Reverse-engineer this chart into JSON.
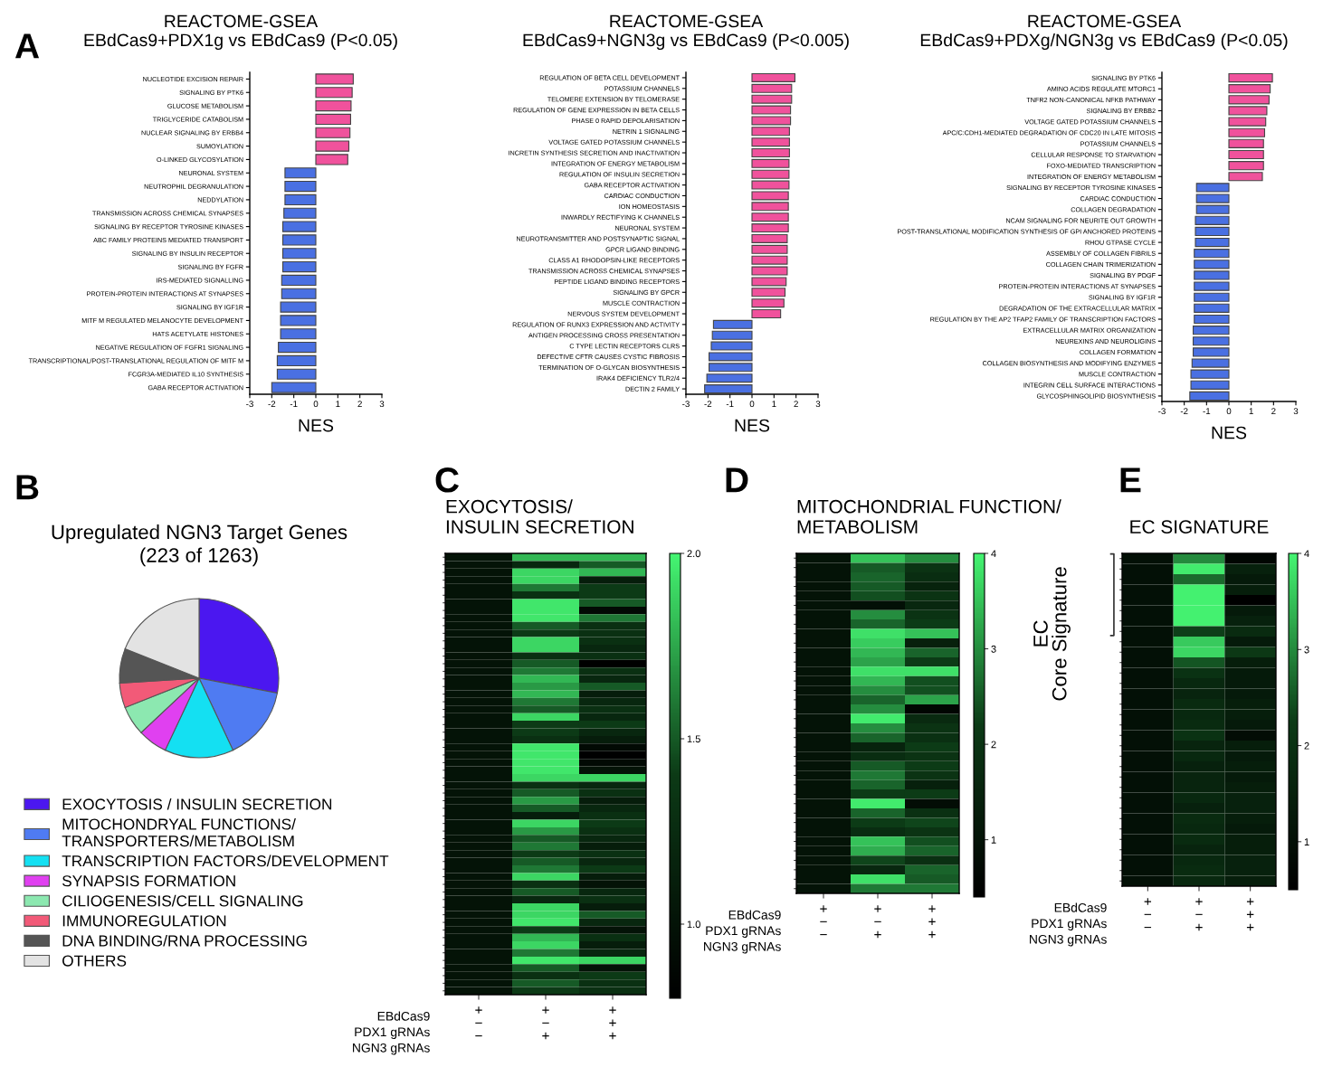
{
  "chart_data": [
    {
      "type": "bar",
      "orientation": "horizontal",
      "title": "REACTOME-GSEA\nEBdCas9+PDX1g vs EBdCas9 (P<0.05)",
      "xlabel": "NES",
      "annotations": [
        "A"
      ],
      "categories": [
        "NUCLEOTIDE EXCISION REPAIR",
        "SIGNALING BY PTK6",
        "GLUCOSE METABOLISM",
        "TRIGLYCERIDE CATABOLISM",
        "NUCLEAR SIGNALING BY ERBB4",
        "SUMOYLATION",
        "O-LINKED GLYCOSYLATION",
        "NEURONAL SYSTEM",
        "NEUTROPHIL DEGRANULATION",
        "NEDDYLATION",
        "TRANSMISSION ACROSS CHEMICAL SYNAPSES",
        "SIGNALING BY RECEPTOR TYROSINE KINASES",
        "ABC FAMILY PROTEINS MEDIATED TRANSPORT",
        "SIGNALING BY INSULIN RECEPTOR",
        "SIGNALING BY FGFR",
        "IRS-MEDIATED SIGNALLING",
        "PROTEIN-PROTEIN INTERACTIONS AT SYNAPSES",
        "SIGNALING BY IGF1R",
        "MITF M REGULATED MELANOCYTE DEVELOPMENT",
        "HATS ACETYLATE HISTONES",
        "NEGATIVE REGULATION OF FGFR1 SIGNALING",
        "TRANSCRIPTIONAL/POST-TRANSLATIONAL REGULATION OF MITF M",
        "FCGR3A-MEDIATED IL10 SYNTHESIS",
        "GABA RECEPTOR ACTIVATION"
      ],
      "values": [
        1.7,
        1.65,
        1.6,
        1.58,
        1.55,
        1.5,
        1.45,
        -1.4,
        -1.4,
        -1.4,
        -1.45,
        -1.5,
        -1.5,
        -1.5,
        -1.5,
        -1.55,
        -1.55,
        -1.6,
        -1.6,
        -1.6,
        -1.7,
        -1.75,
        -1.75,
        -2.0
      ],
      "colors": [
        "#f0529c",
        "#f0529c",
        "#f0529c",
        "#f0529c",
        "#f0529c",
        "#f0529c",
        "#f0529c",
        "#4a70e2",
        "#4a70e2",
        "#4a70e2",
        "#4a70e2",
        "#4a70e2",
        "#4a70e2",
        "#4a70e2",
        "#4a70e2",
        "#4a70e2",
        "#4a70e2",
        "#4a70e2",
        "#4a70e2",
        "#4a70e2",
        "#4a70e2",
        "#4a70e2",
        "#4a70e2",
        "#4a70e2"
      ],
      "xlim": [
        -3,
        3
      ],
      "xticks": [
        -3,
        -2,
        -1,
        0,
        1,
        2,
        3
      ]
    },
    {
      "type": "bar",
      "orientation": "horizontal",
      "title": "REACTOME-GSEA\nEBdCas9+NGN3g vs EBdCas9 (P<0.005)",
      "xlabel": "NES",
      "categories": [
        "REGULATION OF BETA CELL DEVELOPMENT",
        "POTASSIUM CHANNELS",
        "TELOMERE EXTENSION BY TELOMERASE",
        "REGULATION OF GENE EXPRESSION IN BETA CELLS",
        "PHASE 0 RAPID DEPOLARISATION",
        "NETRIN 1 SIGNALING",
        "VOLTAGE GATED POTASSIUM CHANNELS",
        "INCRETIN SYNTHESIS SECRETION AND INACTIVATION",
        "INTEGRATION OF ENERGY METABOLISM",
        "REGULATION OF INSULIN SECRETION",
        "GABA RECEPTOR ACTIVATION",
        "CARDIAC CONDUCTION",
        "ION HOMEOSTASIS",
        "INWARDLY RECTIFYING K CHANNELS",
        "NEURONAL SYSTEM",
        "NEUROTRANSMITTER AND POSTSYNAPTIC SIGNAL",
        "GPCR LIGAND BINDING",
        "CLASS A1 RHODOPSIN-LIKE RECEPTORS",
        "TRANSMISSION ACROSS CHEMICAL SYNAPSES",
        "PEPTIDE LIGAND BINDING RECEPTORS",
        "SIGNALING BY GPCR",
        "MUSCLE CONTRACTION",
        "NERVOUS SYSTEM DEVELOPMENT",
        "REGULATION OF RUNX3 EXPRESSION AND ACTIVITY",
        "ANTIGEN PROCESSING CROSS PRESENTATION",
        "C TYPE LECTIN RECEPTORS CLRS",
        "DEFECTIVE CFTR CAUSES CYSTIC FIBROSIS",
        "TERMINATION OF O-GLYCAN BIOSYNTHESIS",
        "IRAK4 DEFICIENCY TLR2/4",
        "DECTIN 2 FAMILY"
      ],
      "values": [
        1.95,
        1.8,
        1.8,
        1.75,
        1.75,
        1.7,
        1.7,
        1.7,
        1.68,
        1.68,
        1.68,
        1.65,
        1.65,
        1.65,
        1.65,
        1.6,
        1.6,
        1.6,
        1.6,
        1.55,
        1.5,
        1.45,
        1.3,
        -1.75,
        -1.8,
        -1.85,
        -1.95,
        -1.95,
        -2.05,
        -2.15
      ],
      "colors": [
        "#f0529c",
        "#f0529c",
        "#f0529c",
        "#f0529c",
        "#f0529c",
        "#f0529c",
        "#f0529c",
        "#f0529c",
        "#f0529c",
        "#f0529c",
        "#f0529c",
        "#f0529c",
        "#f0529c",
        "#f0529c",
        "#f0529c",
        "#f0529c",
        "#f0529c",
        "#f0529c",
        "#f0529c",
        "#f0529c",
        "#f0529c",
        "#f0529c",
        "#f0529c",
        "#4a70e2",
        "#4a70e2",
        "#4a70e2",
        "#4a70e2",
        "#4a70e2",
        "#4a70e2",
        "#4a70e2"
      ],
      "xlim": [
        -3,
        3
      ],
      "xticks": [
        -3,
        -2,
        -1,
        0,
        1,
        2,
        3
      ]
    },
    {
      "type": "bar",
      "orientation": "horizontal",
      "title": "REACTOME-GSEA\nEBdCas9+PDXg/NGN3g vs EBdCas9 (P<0.05)",
      "xlabel": "NES",
      "categories": [
        "SIGNALING BY PTK6",
        "AMINO ACIDS REGULATE MTORC1",
        "TNFR2 NON-CANONICAL NFKB PATHWAY",
        "SIGNALING BY ERBB2",
        "VOLTAGE GATED POTASSIUM CHANNELS",
        "APC/C:CDH1-MEDIATED DEGRADATION OF CDC20 IN LATE MITOSIS",
        "POTASSIUM CHANNELS",
        "CELLULAR RESPONSE TO STARVATION",
        "FOXO-MEDIATED TRANSCRIPTION",
        "INTEGRATION OF ENERGY METABOLISM",
        "SIGNALING BY RECEPTOR TYROSINE KINASES",
        "CARDIAC CONDUCTION",
        "COLLAGEN DEGRADATION",
        "NCAM SIGNALING FOR NEURITE OUT GROWTH",
        "POST-TRANSLATIONAL MODIFICATION SYNTHESIS OF GPI ANCHORED PROTEINS",
        "RHOU GTPASE CYCLE",
        "ASSEMBLY OF COLLAGEN FIBRILS",
        "COLLAGEN CHAIN TRIMERIZATION",
        "SIGNALING BY PDGF",
        "PROTEIN-PROTEIN INTERACTIONS AT SYNAPSES",
        "SIGNALING BY IGF1R",
        "DEGRADATION OF THE EXTRACELLULAR MATRIX",
        "REGULATION BY THE AP2 TFAP2 FAMILY OF TRANSCRIPTION FACTORS",
        "EXTRACELLULAR MATRIX ORGANIZATION",
        "NEUREXINS AND NEUROLIGINS",
        "COLLAGEN FORMATION",
        "COLLAGEN BIOSYNTHESIS AND MODIFYING ENZYMES",
        "MUSCLE CONTRACTION",
        "INTEGRIN CELL SURFACE INTERACTIONS",
        "GLYCOSPHINGOLIPID BIOSYNTHESIS"
      ],
      "values": [
        1.95,
        1.85,
        1.8,
        1.7,
        1.65,
        1.6,
        1.55,
        1.55,
        1.55,
        1.5,
        -1.45,
        -1.45,
        -1.45,
        -1.5,
        -1.5,
        -1.5,
        -1.55,
        -1.55,
        -1.55,
        -1.55,
        -1.55,
        -1.55,
        -1.55,
        -1.6,
        -1.6,
        -1.6,
        -1.65,
        -1.7,
        -1.7,
        -1.75
      ],
      "colors": [
        "#f0529c",
        "#f0529c",
        "#f0529c",
        "#f0529c",
        "#f0529c",
        "#f0529c",
        "#f0529c",
        "#f0529c",
        "#f0529c",
        "#f0529c",
        "#4a70e2",
        "#4a70e2",
        "#4a70e2",
        "#4a70e2",
        "#4a70e2",
        "#4a70e2",
        "#4a70e2",
        "#4a70e2",
        "#4a70e2",
        "#4a70e2",
        "#4a70e2",
        "#4a70e2",
        "#4a70e2",
        "#4a70e2",
        "#4a70e2",
        "#4a70e2",
        "#4a70e2",
        "#4a70e2",
        "#4a70e2",
        "#4a70e2"
      ],
      "xlim": [
        -3,
        3
      ],
      "xticks": [
        -3,
        -2,
        -1,
        0,
        1,
        2,
        3
      ]
    },
    {
      "type": "pie",
      "title": "Upregulated NGN3 Target Genes\n(223 of 1263)",
      "annotations": [
        "B"
      ],
      "legend": "bottom",
      "categories": [
        "EXOCYTOSIS / INSULIN SECRETION",
        "MITOCHONDRYAL FUNCTIONS/\nTRANSPORTERS/METABOLISM",
        "TRANSCRIPTION FACTORS/DEVELOPMENT",
        "SYNAPSIS FORMATION",
        "CILIOGENESIS/CELL SIGNALING",
        "IMMUNOREGULATION",
        "DNA BINDING/RNA PROCESSING",
        "OTHERS"
      ],
      "values": [
        28,
        15,
        14,
        6,
        6,
        5,
        7,
        19
      ],
      "colors": [
        "#4b17f0",
        "#4f7bf2",
        "#14e0f2",
        "#e040f0",
        "#8ce8b0",
        "#f25a78",
        "#555555",
        "#e3e3e3"
      ]
    },
    {
      "type": "heatmap",
      "title": "EXOCYTOSIS/\nINSULIN SECRETION",
      "annotations": [
        "C",
        "EBdCas9",
        "PDX1 gRNAs",
        "NGN3 gRNAs"
      ],
      "categories": [
        "+\n−\n−",
        "+\n−\n+",
        "+\n+\n+"
      ],
      "y_categories": [
        null,
        null,
        null,
        null,
        null,
        null,
        null,
        null,
        null,
        null,
        null,
        null,
        null,
        null,
        null,
        null,
        null,
        null,
        null,
        null,
        null,
        null,
        null,
        null,
        null,
        null,
        null,
        null,
        null,
        null,
        null,
        null,
        null,
        null,
        null,
        null,
        null,
        null,
        null,
        null,
        null,
        null,
        null,
        null,
        null,
        null,
        null,
        null,
        null,
        null,
        null,
        null,
        null,
        null,
        null,
        null,
        null,
        null
      ],
      "cells": [
        [
          1.0,
          1.8,
          1.8
        ],
        [
          1.0,
          1.2,
          1.5
        ],
        [
          1.0,
          1.9,
          1.8
        ],
        [
          1.0,
          1.9,
          1.1
        ],
        [
          1.0,
          1.6,
          1.4
        ],
        [
          1.0,
          1.3,
          1.4
        ],
        [
          1.0,
          1.95,
          1.5
        ],
        [
          1.0,
          1.95,
          0.9
        ],
        [
          1.0,
          1.95,
          1.6
        ],
        [
          1.0,
          1.5,
          1.3
        ],
        [
          1.0,
          1.4,
          1.3
        ],
        [
          1.0,
          1.9,
          1.3
        ],
        [
          1.0,
          1.9,
          1.2
        ],
        [
          1.0,
          1.3,
          1.3
        ],
        [
          1.0,
          1.5,
          0.8
        ],
        [
          1.0,
          1.6,
          1.3
        ],
        [
          1.0,
          1.8,
          1.2
        ],
        [
          1.0,
          1.7,
          1.5
        ],
        [
          1.0,
          1.8,
          1.1
        ],
        [
          1.0,
          1.6,
          1.2
        ],
        [
          1.0,
          1.5,
          1.3
        ],
        [
          1.0,
          1.9,
          1.2
        ],
        [
          1.0,
          1.4,
          1.4
        ],
        [
          1.0,
          1.4,
          1.2
        ],
        [
          1.0,
          1.3,
          1.1
        ],
        [
          1.0,
          1.95,
          0.9
        ],
        [
          1.0,
          1.95,
          0.8
        ],
        [
          1.0,
          1.95,
          0.9
        ],
        [
          1.0,
          1.95,
          1.0
        ],
        [
          1.0,
          1.9,
          1.9
        ],
        [
          1.0,
          1.3,
          1.2
        ],
        [
          1.0,
          1.5,
          1.3
        ],
        [
          1.0,
          1.7,
          1.1
        ],
        [
          1.0,
          1.5,
          1.2
        ],
        [
          1.0,
          1.1,
          1.3
        ],
        [
          1.0,
          1.9,
          1.4
        ],
        [
          1.0,
          1.7,
          1.3
        ],
        [
          1.0,
          1.5,
          1.2
        ],
        [
          1.0,
          1.6,
          1.1
        ],
        [
          1.0,
          1.4,
          1.3
        ],
        [
          1.0,
          1.5,
          1.2
        ],
        [
          1.0,
          1.6,
          1.4
        ],
        [
          1.0,
          1.9,
          1.1
        ],
        [
          1.0,
          1.3,
          1.0
        ],
        [
          1.0,
          1.5,
          1.2
        ],
        [
          1.0,
          1.2,
          1.3
        ],
        [
          1.0,
          1.9,
          1.1
        ],
        [
          1.0,
          1.9,
          1.5
        ],
        [
          1.0,
          1.95,
          1.2
        ],
        [
          1.0,
          1.4,
          1.0
        ],
        [
          1.0,
          1.8,
          1.3
        ],
        [
          1.0,
          1.9,
          1.1
        ],
        [
          1.0,
          1.6,
          1.2
        ],
        [
          1.0,
          1.95,
          1.9
        ],
        [
          1.0,
          1.5,
          1.0
        ],
        [
          1.0,
          1.3,
          1.4
        ],
        [
          1.0,
          1.5,
          1.3
        ],
        [
          1.0,
          1.4,
          1.3
        ]
      ],
      "clim": [
        0.8,
        2.0
      ],
      "cticks": [
        {
          "value": 1.0,
          "label": "1.0"
        },
        {
          "value": 1.5,
          "label": "1.5"
        },
        {
          "value": 2.0,
          "label": "2.0"
        }
      ]
    },
    {
      "type": "heatmap",
      "title": "MITOCHONDRIAL FUNCTION/\nMETABOLISM",
      "annotations": [
        "D",
        "EBdCas9",
        "PDX1 gRNAs",
        "NGN3 gRNAs"
      ],
      "categories": [
        "+\n−\n−",
        "+\n−\n+",
        "+\n+\n+"
      ],
      "y_categories": [
        null,
        null,
        null,
        null,
        null,
        null,
        null,
        null,
        null,
        null,
        null,
        null,
        null,
        null,
        null,
        null,
        null,
        null,
        null,
        null,
        null,
        null,
        null,
        null,
        null,
        null,
        null,
        null,
        null,
        null,
        null,
        null,
        null,
        null,
        null,
        null
      ],
      "cells": [
        [
          1,
          3.5,
          3.0
        ],
        [
          1,
          2.5,
          2.0
        ],
        [
          1,
          2.6,
          1.8
        ],
        [
          1,
          2.5,
          1.5
        ],
        [
          1,
          2.4,
          2.0
        ],
        [
          1,
          0.9,
          1.6
        ],
        [
          1,
          3.0,
          2.0
        ],
        [
          1,
          2.6,
          2.2
        ],
        [
          1,
          3.8,
          3.5
        ],
        [
          1,
          3.6,
          1.4
        ],
        [
          1,
          3.4,
          2.6
        ],
        [
          1,
          3.2,
          2.2
        ],
        [
          1,
          3.8,
          3.8
        ],
        [
          1,
          3.4,
          2.4
        ],
        [
          1,
          3.0,
          2.4
        ],
        [
          1,
          2.6,
          3.2
        ],
        [
          1,
          3.0,
          0.6
        ],
        [
          1,
          3.9,
          1.7
        ],
        [
          1,
          3.0,
          2.0
        ],
        [
          1,
          2.6,
          1.9
        ],
        [
          1,
          1.5,
          2.2
        ],
        [
          1,
          1.8,
          2.0
        ],
        [
          1,
          2.5,
          2.2
        ],
        [
          1,
          2.8,
          2.0
        ],
        [
          1,
          2.6,
          1.4
        ],
        [
          1,
          2.2,
          2.2
        ],
        [
          1,
          3.9,
          0.8
        ],
        [
          1,
          2.6,
          1.9
        ],
        [
          1,
          2.2,
          2.3
        ],
        [
          1,
          1.8,
          2.0
        ],
        [
          1,
          3.5,
          2.4
        ],
        [
          1,
          3.3,
          2.6
        ],
        [
          1,
          2.3,
          1.9
        ],
        [
          1,
          1.6,
          2.6
        ],
        [
          1,
          3.8,
          2.5
        ],
        [
          1,
          2.8,
          2.8
        ]
      ],
      "clim": [
        0.4,
        4
      ],
      "cticks": [
        1,
        2,
        3,
        4
      ]
    },
    {
      "type": "heatmap",
      "title": "EC SIGNATURE",
      "annotations": [
        "E",
        "EBdCas9",
        "PDX1 gRNAs",
        "NGN3 gRNAs",
        "EC\nCore Signature"
      ],
      "categories": [
        "+\n−\n−",
        "+\n−\n+",
        "+\n+\n+"
      ],
      "y_categories": [
        null,
        null,
        null,
        null,
        null,
        null,
        null,
        null,
        null,
        null,
        null,
        null,
        null,
        null,
        null,
        null,
        null,
        null,
        null,
        null,
        null,
        null,
        null,
        null,
        null,
        null,
        null,
        null,
        null,
        null,
        null,
        null
      ],
      "cells": [
        [
          1,
          3.0,
          0.7
        ],
        [
          1,
          3.9,
          1.5
        ],
        [
          1,
          2.7,
          1.3
        ],
        [
          1,
          3.95,
          1.4
        ],
        [
          1,
          3.95,
          0.5
        ],
        [
          1,
          3.95,
          1.3
        ],
        [
          1,
          3.95,
          1.5
        ],
        [
          1,
          2.3,
          1.8
        ],
        [
          1,
          3.6,
          1.3
        ],
        [
          1,
          3.7,
          2.2
        ],
        [
          1,
          2.5,
          1.4
        ],
        [
          1,
          2.0,
          1.3
        ],
        [
          1,
          1.7,
          1.3
        ],
        [
          1,
          1.6,
          1.3
        ],
        [
          1,
          1.8,
          1.4
        ],
        [
          1,
          1.7,
          1.4
        ],
        [
          1,
          1.8,
          1.3
        ],
        [
          1,
          2.0,
          0.9
        ],
        [
          1,
          1.6,
          1.4
        ],
        [
          1,
          1.7,
          1.3
        ],
        [
          1,
          1.5,
          1.4
        ],
        [
          1,
          1.6,
          1.3
        ],
        [
          1,
          1.6,
          1.4
        ],
        [
          1,
          1.7,
          1.5
        ],
        [
          1,
          1.5,
          1.5
        ],
        [
          1,
          1.8,
          1.4
        ],
        [
          1,
          1.7,
          1.3
        ],
        [
          1,
          1.8,
          1.4
        ],
        [
          1,
          1.6,
          1.4
        ],
        [
          1,
          1.7,
          1.5
        ],
        [
          1,
          1.8,
          1.5
        ],
        [
          1,
          1.7,
          1.4
        ]
      ],
      "clim": [
        0.5,
        4
      ],
      "cticks": [
        1,
        2,
        3,
        4
      ]
    }
  ]
}
